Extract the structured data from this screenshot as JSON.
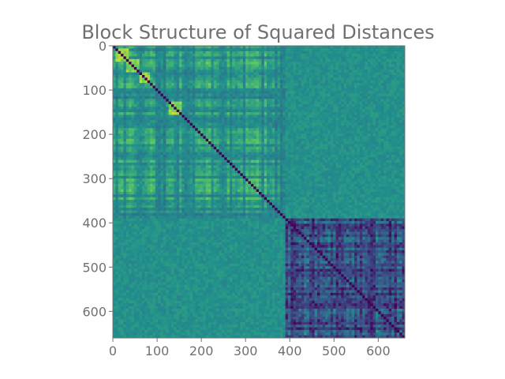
{
  "chart_data": {
    "type": "heatmap",
    "title": "Block Structure of Squared Distances",
    "xlabel": "",
    "ylabel": "",
    "n": 660,
    "xlim": [
      0,
      660
    ],
    "ylim": [
      660,
      0
    ],
    "y_axis_inverted": true,
    "x_ticks": [
      0,
      100,
      200,
      300,
      400,
      500,
      600
    ],
    "y_ticks": [
      0,
      100,
      200,
      300,
      400,
      500,
      600
    ],
    "colormap": "viridis",
    "colormap_stops": [
      "#440154",
      "#3b528b",
      "#21918c",
      "#5ec962",
      "#fde725"
    ],
    "blocks": [
      {
        "start": 0,
        "end": 385,
        "level": 0.42
      },
      {
        "start": 385,
        "end": 660,
        "level": 0.18
      }
    ],
    "cross_block_level": 0.5,
    "bright_diagonal_blocks": [
      {
        "start": 5,
        "end": 35
      },
      {
        "start": 30,
        "end": 55
      },
      {
        "start": 55,
        "end": 80
      },
      {
        "start": 125,
        "end": 155
      }
    ],
    "grid": false,
    "legend": "none"
  }
}
